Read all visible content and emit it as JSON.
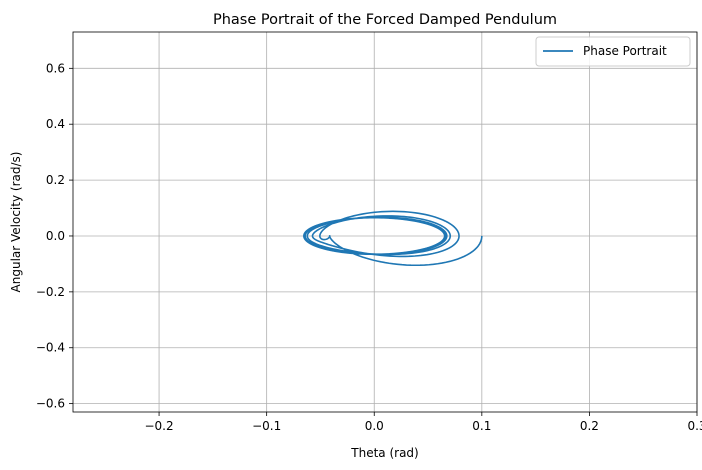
{
  "chart_data": {
    "type": "line",
    "title": "Phase Portrait of the Forced Damped Pendulum",
    "xlabel": "Theta (rad)",
    "ylabel": "Angular Velocity (rad/s)",
    "xlim": [
      -0.28,
      0.3
    ],
    "ylim": [
      -0.63,
      0.73
    ],
    "xticks": [
      -0.2,
      -0.1,
      0.0,
      0.1,
      0.2,
      0.3
    ],
    "xtick_labels": [
      "−0.2",
      "−0.1",
      "0.0",
      "0.1",
      "0.2",
      "0.3"
    ],
    "yticks": [
      -0.6,
      -0.4,
      -0.2,
      0.0,
      0.2,
      0.4,
      0.6
    ],
    "ytick_labels": [
      "−0.6",
      "−0.4",
      "−0.2",
      "0.0",
      "0.2",
      "0.4",
      "0.6"
    ],
    "grid": true,
    "legend_position": "top-right",
    "series": [
      {
        "name": "Phase Portrait",
        "color": "#1f77b4",
        "description_points": [
          {
            "theta": 0.1,
            "omega": 0.0
          },
          {
            "theta": 0.107,
            "omega": 0.035
          },
          {
            "theta": -0.177,
            "omega": 0.0
          },
          {
            "theta": 0.178,
            "omega": 0.0
          },
          {
            "theta": 0.285,
            "omega": 0.0
          },
          {
            "theta": -0.26,
            "omega": 0.0
          },
          {
            "theta": 0.0,
            "omega": 0.67
          },
          {
            "theta": 0.0,
            "omega": -0.61
          },
          {
            "theta": -0.205,
            "omega": 0.0
          },
          {
            "theta": 0.215,
            "omega": 0.0
          },
          {
            "theta": 0.0,
            "omega": 0.41
          },
          {
            "theta": 0.0,
            "omega": -0.41
          }
        ]
      }
    ]
  }
}
